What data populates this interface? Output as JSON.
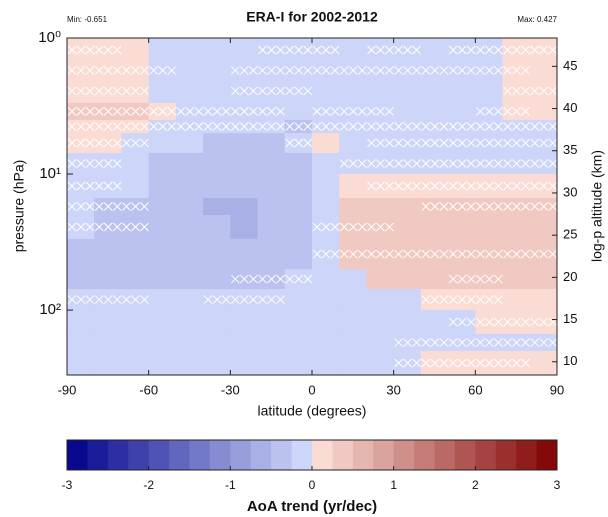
{
  "chart_data": {
    "type": "heatmap",
    "title": "ERA-I for 2002-2012",
    "min_label": "Min: -0.651",
    "max_label": "Max: 0.427",
    "xlabel": "latitude (degrees)",
    "ylabel": "pressure (hPa)",
    "y2label": "log-p altitude (km)",
    "colorbar_label": "AoA trend (yr/dec)",
    "xlim": [
      -90,
      90
    ],
    "xticks": [
      -90,
      -60,
      -30,
      0,
      30,
      60,
      90
    ],
    "ylim": [
      1,
      300
    ],
    "ylog": true,
    "y_reversed": true,
    "yticks": [
      {
        "value": 1,
        "label": "10⁰"
      },
      {
        "value": 10,
        "label": "10¹"
      },
      {
        "value": 100,
        "label": "10²"
      }
    ],
    "y2lim": [
      8.43,
      48.36
    ],
    "y2ticks": [
      10,
      15,
      20,
      25,
      30,
      35,
      40,
      45
    ],
    "clim": [
      -3,
      3
    ],
    "cticks": [
      -3,
      -2,
      -1,
      0,
      1,
      2,
      3
    ],
    "levels": 24,
    "colormap": {
      "negative": [
        "#00008b",
        "#cdd5f8"
      ],
      "positive": [
        "#fadcd5",
        "#7f0000"
      ]
    },
    "lat_edges": [
      -90,
      -80,
      -70,
      -60,
      -50,
      -40,
      -30,
      -20,
      -10,
      0,
      10,
      20,
      30,
      40,
      50,
      60,
      70,
      80,
      90
    ],
    "p_edges": [
      1,
      1.5,
      2,
      3,
      4,
      5,
      7,
      10,
      15,
      20,
      30,
      50,
      70,
      100,
      150,
      200,
      300
    ],
    "values": [
      [
        0.2,
        0.2,
        0.2,
        -0.2,
        -0.2,
        -0.2,
        -0.2,
        -0.2,
        -0.2,
        -0.2,
        -0.2,
        -0.2,
        -0.2,
        -0.2,
        -0.2,
        -0.2,
        0.2,
        0.2
      ],
      [
        0.2,
        0.2,
        0.2,
        -0.2,
        -0.2,
        -0.2,
        -0.2,
        -0.2,
        -0.2,
        -0.2,
        -0.2,
        -0.2,
        -0.2,
        -0.2,
        -0.2,
        -0.2,
        0.2,
        0.2
      ],
      [
        0.2,
        0.2,
        0.2,
        -0.2,
        -0.2,
        -0.2,
        -0.2,
        -0.2,
        -0.2,
        -0.2,
        -0.2,
        -0.2,
        -0.2,
        -0.2,
        -0.2,
        -0.2,
        0.2,
        0.2
      ],
      [
        0.25,
        0.25,
        0.25,
        0.1,
        -0.2,
        -0.2,
        -0.2,
        -0.2,
        -0.2,
        -0.2,
        -0.2,
        -0.2,
        -0.2,
        -0.2,
        -0.2,
        -0.2,
        0.1,
        0.1
      ],
      [
        0.2,
        0.2,
        0.2,
        -0.2,
        -0.2,
        -0.2,
        -0.2,
        -0.2,
        -0.35,
        -0.2,
        -0.2,
        -0.2,
        -0.2,
        -0.2,
        -0.2,
        -0.2,
        -0.2,
        -0.2
      ],
      [
        0.15,
        0.15,
        -0.2,
        -0.2,
        -0.2,
        -0.3,
        -0.3,
        -0.3,
        -0.2,
        0.1,
        -0.2,
        -0.2,
        -0.2,
        -0.2,
        -0.2,
        -0.2,
        -0.2,
        -0.2
      ],
      [
        -0.2,
        -0.2,
        -0.2,
        -0.4,
        -0.4,
        -0.4,
        -0.4,
        -0.4,
        -0.4,
        -0.2,
        -0.2,
        -0.2,
        -0.2,
        -0.2,
        -0.2,
        -0.2,
        -0.2,
        -0.2
      ],
      [
        -0.2,
        -0.2,
        -0.2,
        -0.45,
        -0.45,
        -0.45,
        -0.45,
        -0.45,
        -0.45,
        -0.1,
        0.2,
        0.2,
        0.2,
        0.2,
        0.2,
        0.2,
        0.2,
        0.2
      ],
      [
        -0.2,
        -0.45,
        -0.45,
        -0.45,
        -0.45,
        -0.55,
        -0.55,
        -0.45,
        -0.45,
        -0.15,
        0.3,
        0.3,
        0.3,
        0.3,
        0.3,
        0.3,
        0.3,
        0.3
      ],
      [
        -0.2,
        -0.45,
        -0.45,
        -0.45,
        -0.45,
        -0.45,
        -0.651,
        -0.45,
        -0.35,
        -0.2,
        0.3,
        0.427,
        0.3,
        0.3,
        0.3,
        0.3,
        0.3,
        0.3
      ],
      [
        -0.4,
        -0.4,
        -0.4,
        -0.4,
        -0.4,
        -0.4,
        -0.4,
        -0.4,
        -0.4,
        -0.2,
        0.3,
        0.3,
        0.3,
        0.3,
        0.3,
        0.3,
        0.3,
        0.3
      ],
      [
        -0.35,
        -0.35,
        -0.35,
        -0.35,
        -0.35,
        -0.35,
        -0.35,
        -0.35,
        -0.2,
        -0.15,
        -0.1,
        0.25,
        0.25,
        0.25,
        0.25,
        0.25,
        0.25,
        0.25
      ],
      [
        -0.25,
        -0.25,
        -0.25,
        -0.25,
        -0.25,
        -0.25,
        -0.25,
        -0.25,
        -0.25,
        -0.25,
        -0.25,
        -0.25,
        -0.25,
        0.1,
        0.2,
        0.2,
        0.2,
        0.2
      ],
      [
        -0.2,
        -0.2,
        -0.2,
        -0.2,
        -0.2,
        -0.2,
        -0.2,
        -0.2,
        -0.2,
        -0.2,
        -0.2,
        -0.2,
        -0.2,
        -0.2,
        -0.2,
        0.2,
        0.2,
        0.2
      ],
      [
        -0.2,
        -0.2,
        -0.2,
        -0.2,
        -0.2,
        -0.2,
        -0.2,
        -0.2,
        -0.2,
        -0.2,
        -0.2,
        -0.2,
        -0.2,
        -0.2,
        -0.2,
        -0.2,
        -0.2,
        -0.2
      ],
      [
        -0.2,
        -0.2,
        -0.2,
        -0.2,
        -0.2,
        -0.2,
        -0.2,
        -0.2,
        -0.2,
        -0.2,
        -0.2,
        -0.2,
        -0.2,
        0.15,
        0.15,
        0.15,
        0.15,
        0.15
      ]
    ],
    "significant": [
      [
        1,
        1,
        0,
        0,
        0,
        0,
        0,
        1,
        1,
        1,
        0,
        1,
        1,
        0,
        1,
        1,
        1,
        1
      ],
      [
        1,
        1,
        1,
        1,
        0,
        0,
        1,
        1,
        1,
        1,
        1,
        1,
        1,
        1,
        1,
        1,
        1,
        0
      ],
      [
        1,
        1,
        1,
        0,
        0,
        0,
        1,
        1,
        1,
        0,
        0,
        0,
        0,
        0,
        0,
        0,
        1,
        1
      ],
      [
        1,
        1,
        1,
        1,
        1,
        1,
        1,
        1,
        0,
        1,
        1,
        1,
        0,
        0,
        0,
        1,
        1,
        0
      ],
      [
        1,
        1,
        1,
        1,
        1,
        1,
        1,
        1,
        1,
        1,
        1,
        1,
        1,
        1,
        1,
        1,
        1,
        1
      ],
      [
        1,
        1,
        1,
        0,
        0,
        0,
        0,
        0,
        1,
        0,
        0,
        1,
        1,
        1,
        1,
        1,
        1,
        1
      ],
      [
        1,
        1,
        0,
        0,
        0,
        0,
        0,
        0,
        0,
        0,
        1,
        1,
        1,
        1,
        1,
        1,
        1,
        1
      ],
      [
        1,
        1,
        0,
        0,
        0,
        0,
        0,
        0,
        0,
        0,
        0,
        1,
        1,
        1,
        1,
        1,
        1,
        1
      ],
      [
        1,
        1,
        1,
        0,
        0,
        0,
        0,
        0,
        0,
        0,
        0,
        0,
        0,
        1,
        1,
        1,
        1,
        1
      ],
      [
        1,
        1,
        1,
        0,
        0,
        0,
        0,
        0,
        0,
        1,
        1,
        1,
        0,
        0,
        0,
        0,
        0,
        0
      ],
      [
        0,
        0,
        0,
        0,
        0,
        0,
        0,
        0,
        0,
        1,
        1,
        1,
        1,
        1,
        1,
        1,
        1,
        1
      ],
      [
        0,
        0,
        0,
        0,
        0,
        0,
        1,
        1,
        1,
        0,
        0,
        0,
        0,
        0,
        1,
        1,
        0,
        0
      ],
      [
        1,
        1,
        1,
        0,
        0,
        1,
        1,
        1,
        0,
        0,
        0,
        0,
        0,
        1,
        1,
        1,
        0,
        0
      ],
      [
        0,
        0,
        0,
        0,
        0,
        0,
        0,
        0,
        0,
        0,
        0,
        0,
        0,
        0,
        1,
        1,
        1,
        1
      ],
      [
        0,
        0,
        0,
        0,
        0,
        0,
        0,
        0,
        0,
        0,
        0,
        0,
        1,
        1,
        1,
        1,
        1,
        1
      ],
      [
        0,
        0,
        0,
        0,
        0,
        0,
        0,
        0,
        0,
        0,
        0,
        0,
        1,
        1,
        1,
        1,
        1,
        0
      ]
    ]
  }
}
